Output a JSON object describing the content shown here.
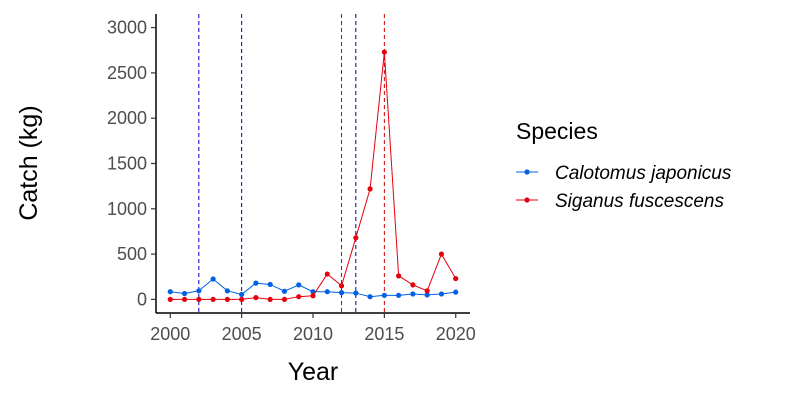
{
  "chart_data": {
    "type": "line",
    "xlabel": "Year",
    "ylabel": "Catch (kg)",
    "xlim": [
      1999,
      2021
    ],
    "ylim": [
      -150,
      3150
    ],
    "x_ticks": [
      2000,
      2005,
      2010,
      2015,
      2020
    ],
    "y_ticks": [
      0,
      500,
      1000,
      1500,
      2000,
      2500,
      3000
    ],
    "grid": false,
    "legend": {
      "title": "Species",
      "placement": "right"
    },
    "x": [
      2000,
      2001,
      2002,
      2003,
      2004,
      2005,
      2006,
      2007,
      2008,
      2009,
      2010,
      2011,
      2012,
      2013,
      2014,
      2015,
      2016,
      2017,
      2018,
      2019,
      2020
    ],
    "series": [
      {
        "name": "Calotomus japonicus",
        "color": "#0060e6",
        "values": [
          85,
          65,
          95,
          225,
          95,
          55,
          180,
          165,
          90,
          160,
          85,
          85,
          75,
          70,
          30,
          45,
          45,
          60,
          50,
          60,
          80
        ]
      },
      {
        "name": "Siganus fuscescens",
        "color": "#e6000e",
        "values": [
          0,
          0,
          0,
          0,
          0,
          0,
          20,
          0,
          0,
          30,
          40,
          280,
          150,
          680,
          1220,
          2730,
          260,
          160,
          95,
          500,
          230
        ]
      }
    ],
    "vlines": [
      {
        "x": 2002,
        "color": "#0000cc"
      },
      {
        "x": 2005,
        "color": "#0000cc"
      },
      {
        "x": 2012,
        "color": "#cc0000"
      },
      {
        "x": 2013,
        "color": "#000080"
      },
      {
        "x": 2015,
        "color": "#cc0000"
      }
    ]
  }
}
